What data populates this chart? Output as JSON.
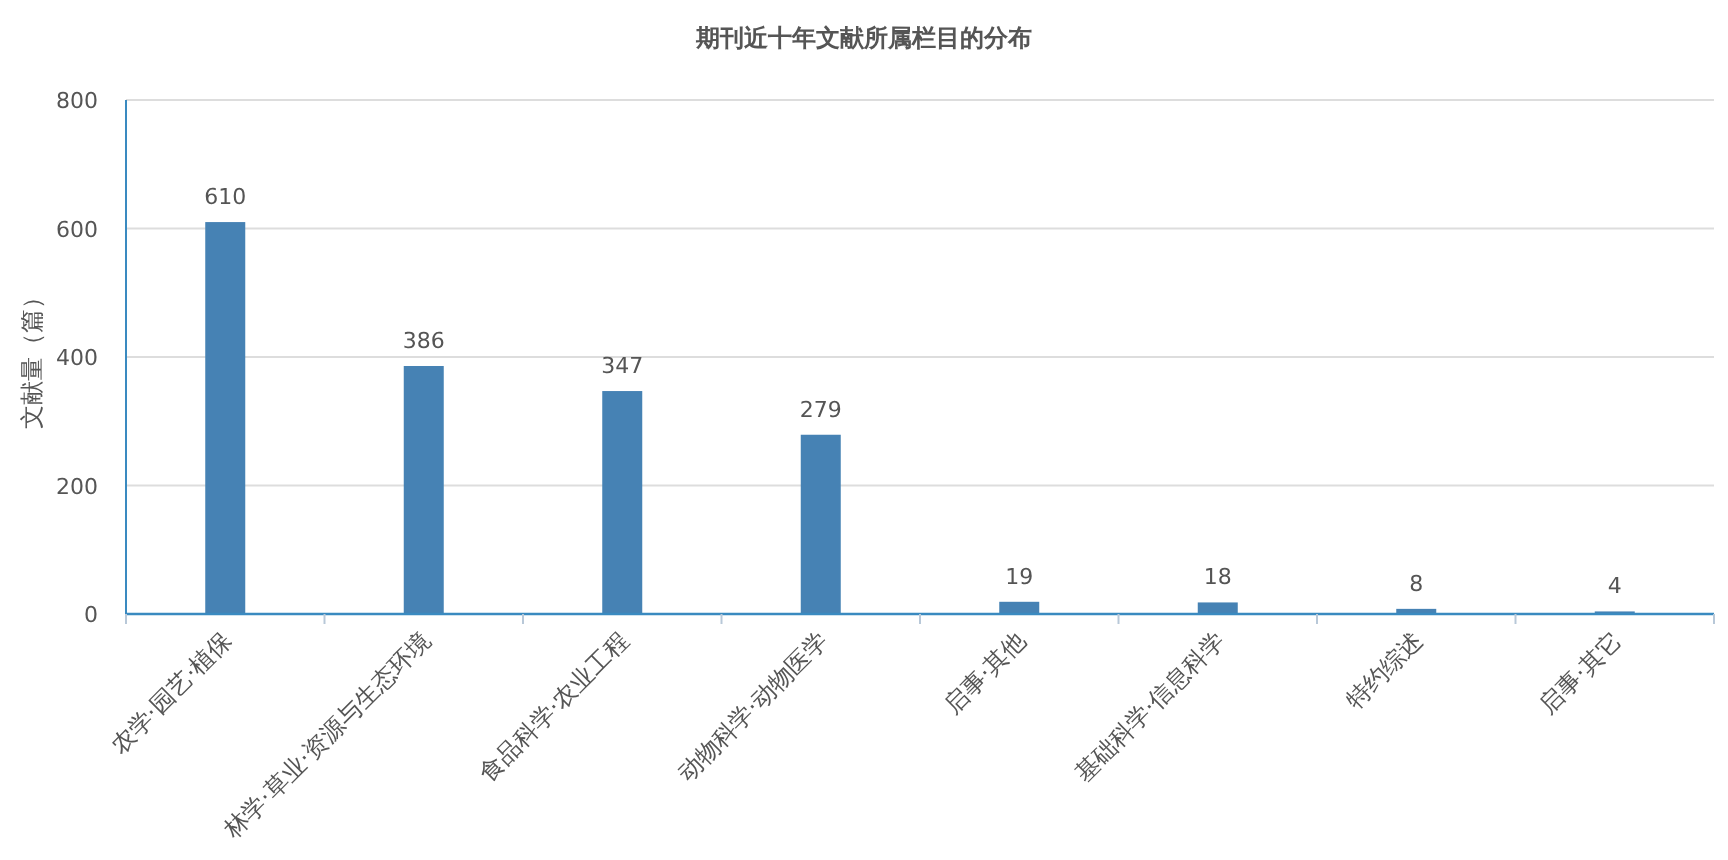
{
  "chart_data": {
    "type": "bar",
    "title": "期刊近十年文献所属栏目的分布",
    "ylabel": "文献量（篇）",
    "categories": [
      "农学·园艺·植保",
      "林学·草业·资源与生态环境",
      "食品科学·农业工程",
      "动物科学·动物医学",
      "启事·其他",
      "基础科学·信息科学",
      "特约综述",
      "启事·其它"
    ],
    "values": [
      610,
      386,
      347,
      279,
      19,
      18,
      8,
      4
    ],
    "color": "#4682b4",
    "ylim": [
      0,
      800
    ],
    "yticks": [
      0,
      200,
      400,
      600,
      800
    ],
    "grid": "y",
    "data_labels": true
  }
}
